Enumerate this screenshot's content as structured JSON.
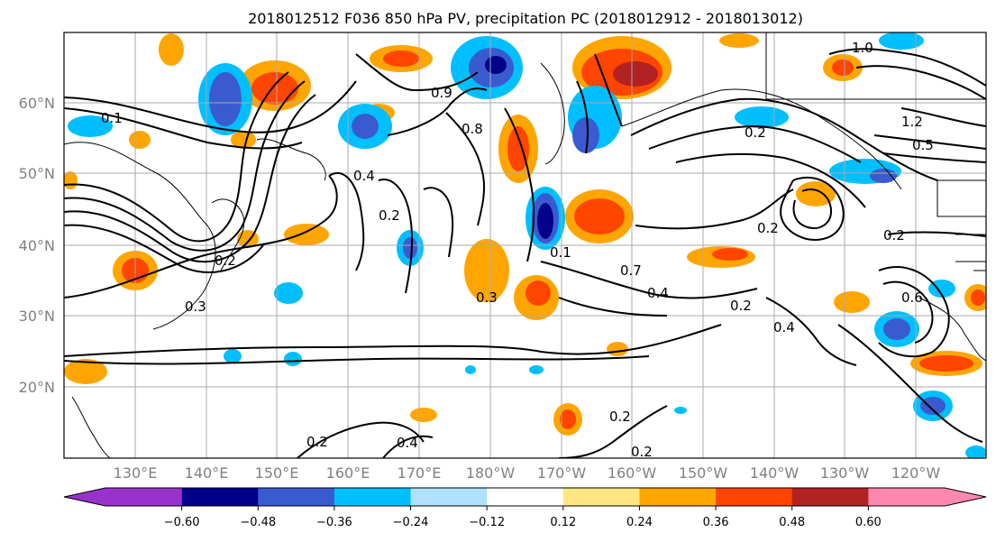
{
  "title": "2018012512 F036 850 hPa PV, precipitation PC (2018012912 - 2018013012)",
  "map": {
    "lat_labels": [
      "60°N",
      "50°N",
      "40°N",
      "30°N",
      "20°N"
    ],
    "lon_labels": [
      "130°E",
      "140°E",
      "150°E",
      "160°E",
      "170°E",
      "180°W",
      "170°W",
      "160°W",
      "150°W",
      "140°W",
      "130°W",
      "120°W"
    ],
    "contour_labels": [
      "1.0",
      "0.5",
      "1.2",
      "0.2",
      "0.4",
      "0.8",
      "0.9",
      "0.2",
      "0.3",
      "0.4",
      "0.2",
      "0.1",
      "0.7",
      "0.4",
      "0.2",
      "0.4",
      "0.2",
      "0.2",
      "0.2",
      "0.3",
      "0.1",
      "0.2",
      "0.6",
      "0.2"
    ]
  },
  "colorbar": {
    "tick_labels": [
      "−0.60",
      "−0.48",
      "−0.36",
      "−0.24",
      "−0.12",
      "0.12",
      "0.24",
      "0.36",
      "0.48",
      "0.60"
    ],
    "colors": [
      "#9932cc",
      "#00008b",
      "#3a5bd0",
      "#00bfff",
      "#b0e0ff",
      "#ffffff",
      "#ffe680",
      "#ffa500",
      "#ff4500",
      "#b22222",
      "#ff88b0"
    ]
  }
}
